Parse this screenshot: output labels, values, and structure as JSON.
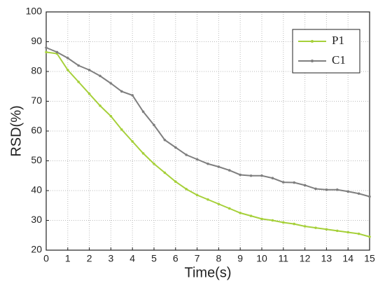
{
  "chart_data": {
    "type": "line",
    "x_label": "Time(s)",
    "y_label": "RSD(%)",
    "x": [
      0,
      0.5,
      1,
      1.5,
      2,
      2.5,
      3,
      3.5,
      4,
      4.5,
      5,
      5.5,
      6,
      6.5,
      7,
      7.5,
      8,
      8.5,
      9,
      9.5,
      10,
      10.5,
      11,
      11.5,
      12,
      12.5,
      13,
      13.5,
      14,
      14.5,
      15
    ],
    "series": [
      {
        "name": "P1",
        "color": "#a6d03a",
        "values": [
          86.5,
          86,
          80.5,
          76.5,
          72.5,
          68.5,
          65,
          60.5,
          56.5,
          52.5,
          49,
          46,
          43,
          40.5,
          38.5,
          37,
          35.5,
          34,
          32.5,
          31.5,
          30.5,
          30,
          29.3,
          28.8,
          28,
          27.5,
          27,
          26.5,
          26,
          25.5,
          24.5
        ]
      },
      {
        "name": "C1",
        "color": "#7f7f7f",
        "values": [
          88,
          86.5,
          84.5,
          82,
          80.5,
          78.5,
          76,
          73.3,
          72,
          66.5,
          62,
          57,
          54.5,
          52,
          50.5,
          49,
          48,
          46.8,
          45.3,
          45,
          45,
          44.2,
          42.8,
          42.7,
          41.8,
          40.6,
          40.3,
          40.3,
          39.7,
          39,
          38
        ]
      }
    ],
    "xlim": [
      0,
      15
    ],
    "xticks": [
      0,
      1,
      2,
      3,
      4,
      5,
      6,
      7,
      8,
      9,
      10,
      11,
      12,
      13,
      14,
      15
    ],
    "ylim": [
      20,
      100
    ],
    "yticks": [
      20,
      30,
      40,
      50,
      60,
      70,
      80,
      90,
      100
    ],
    "grid": true,
    "legend": "upper-right"
  }
}
